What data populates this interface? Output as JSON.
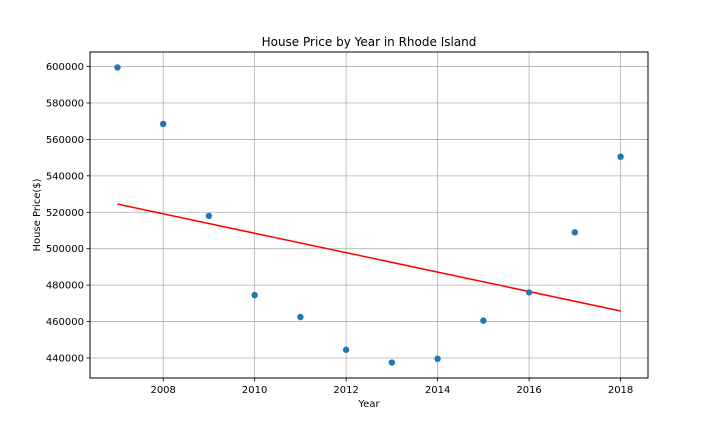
{
  "chart_data": {
    "type": "scatter",
    "title": "House Price by Year in Rhode Island",
    "xlabel": "Year",
    "ylabel": "House Price($)",
    "xlim": [
      2006.4,
      2018.6
    ],
    "ylim": [
      429000,
      608000
    ],
    "xticks": [
      2008,
      2010,
      2012,
      2014,
      2016,
      2018
    ],
    "yticks": [
      440000,
      460000,
      480000,
      500000,
      520000,
      540000,
      560000,
      580000,
      600000
    ],
    "grid": true,
    "series": [
      {
        "kind": "scatter",
        "color": "#1f77b4",
        "points": [
          {
            "x": 2007,
            "y": 599500
          },
          {
            "x": 2008,
            "y": 568500
          },
          {
            "x": 2009,
            "y": 518000
          },
          {
            "x": 2010,
            "y": 474500
          },
          {
            "x": 2011,
            "y": 462500
          },
          {
            "x": 2012,
            "y": 444500
          },
          {
            "x": 2013,
            "y": 437500
          },
          {
            "x": 2014,
            "y": 439500
          },
          {
            "x": 2015,
            "y": 460500
          },
          {
            "x": 2016,
            "y": 476000
          },
          {
            "x": 2017,
            "y": 509000
          },
          {
            "x": 2018,
            "y": 550500
          }
        ]
      },
      {
        "kind": "line",
        "color": "#ff0000",
        "points": [
          {
            "x": 2007,
            "y": 524500
          },
          {
            "x": 2018,
            "y": 465800
          }
        ]
      }
    ]
  }
}
